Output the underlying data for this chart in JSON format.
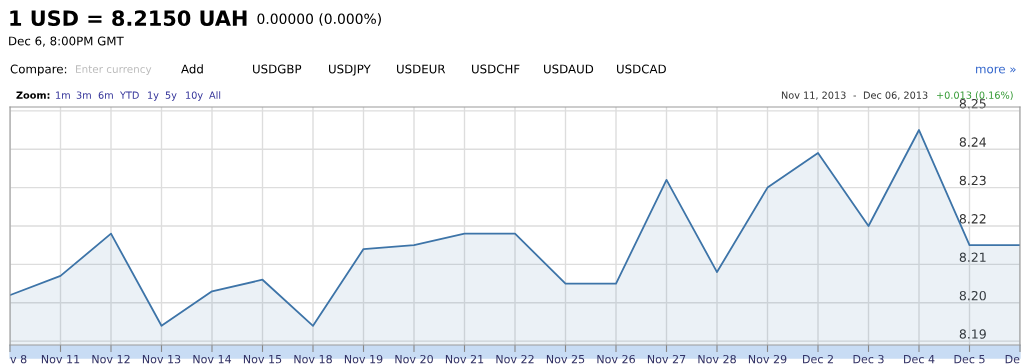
{
  "chart_data": {
    "type": "area",
    "title": "1 USD = 8.2150 UAH",
    "subtitle": "Dec 6, 8:00PM GMT",
    "annotations": [
      "0.00000 (0.000%)",
      "Compare:",
      "Enter currency",
      "Add",
      "USDGBP",
      "USDJPY",
      "USDEUR",
      "USDCHF",
      "USDAUD",
      "USDCAD",
      "more »",
      "Zoom:",
      "1m",
      "3m",
      "6m",
      "YTD",
      "1y",
      "5y",
      "10y",
      "All",
      "Nov 11, 2013",
      "-",
      "Dec 06, 2013",
      "+0.013 (0.16%)"
    ],
    "categories": [
      "v 8",
      "Nov 11",
      "Nov 12",
      "Nov 13",
      "Nov 14",
      "Nov 15",
      "Nov 18",
      "Nov 19",
      "Nov 20",
      "Nov 21",
      "Nov 22",
      "Nov 25",
      "Nov 26",
      "Nov 27",
      "Nov 28",
      "Nov 29",
      "Dec 2",
      "Dec 3",
      "Dec 4",
      "Dec 5",
      "De"
    ],
    "series": [
      {
        "color": "#3d74a8",
        "values": [
          8.202,
          8.207,
          8.218,
          8.194,
          8.203,
          8.206,
          8.194,
          8.214,
          8.215,
          8.218,
          8.218,
          8.205,
          8.205,
          8.232,
          8.208,
          8.23,
          8.239,
          8.22,
          8.245,
          8.215,
          8.215
        ]
      }
    ],
    "ylim": [
      8.189,
      8.251
    ],
    "yticks": [
      8.19,
      {
        "value": 8.2,
        "label": "8.20"
      },
      8.21,
      8.22,
      8.23,
      8.24,
      8.25
    ],
    "grid": true
  }
}
